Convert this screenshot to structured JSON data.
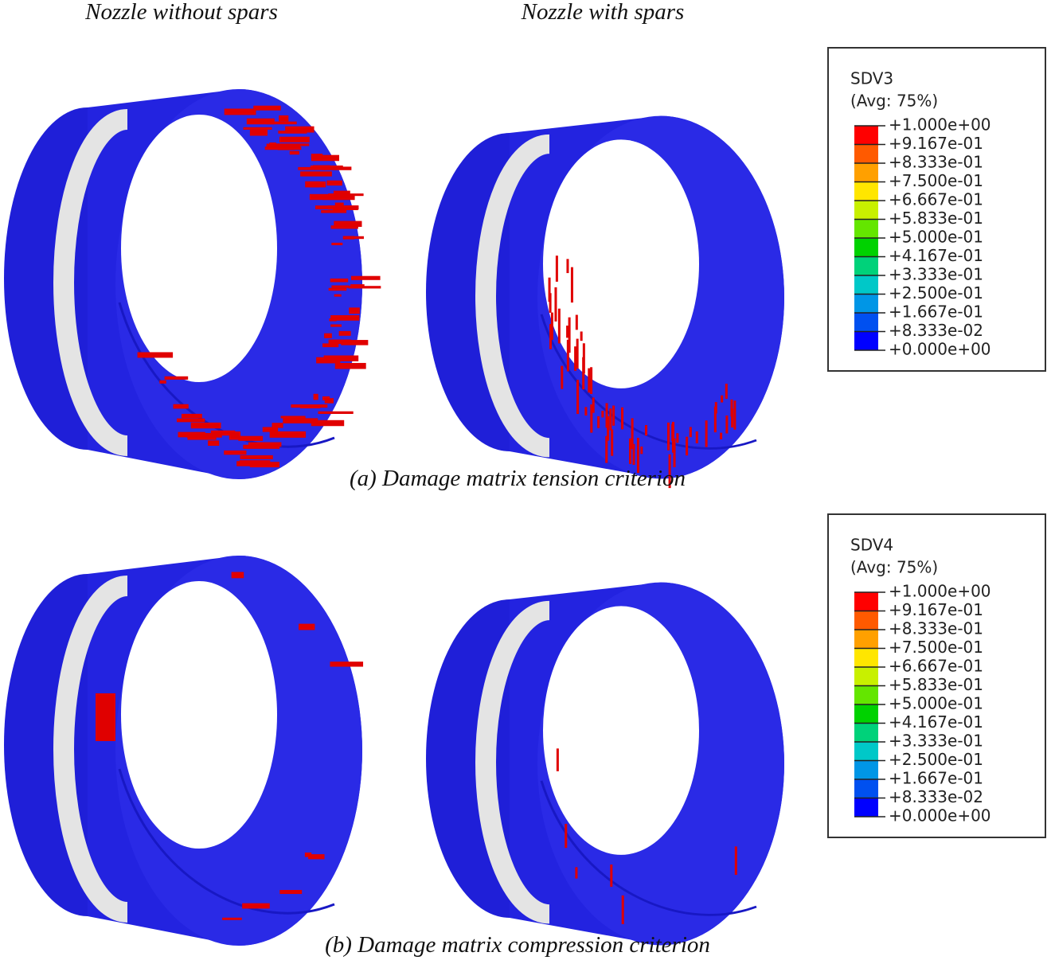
{
  "column_titles": [
    "Nozzle without spars",
    "Nozzle with spars"
  ],
  "panels": [
    {
      "caption": "(a) Damage matrix tension criterion",
      "legend": {
        "title": "SDV3",
        "subtitle": "(Avg: 75%)",
        "labels": [
          "+1.000e+00",
          "+9.167e-01",
          "+8.333e-01",
          "+7.500e-01",
          "+6.667e-01",
          "+5.833e-01",
          "+5.000e-01",
          "+4.167e-01",
          "+3.333e-01",
          "+2.500e-01",
          "+1.667e-01",
          "+8.333e-02",
          "+0.000e+00"
        ]
      }
    },
    {
      "caption": "(b) Damage matrix compression criterion",
      "legend": {
        "title": "SDV4",
        "subtitle": "(Avg: 75%)",
        "labels": [
          "+1.000e+00",
          "+9.167e-01",
          "+8.333e-01",
          "+7.500e-01",
          "+6.667e-01",
          "+5.833e-01",
          "+5.000e-01",
          "+4.167e-01",
          "+3.333e-01",
          "+2.500e-01",
          "+1.667e-01",
          "+8.333e-02",
          "+0.000e+00"
        ]
      }
    }
  ]
}
